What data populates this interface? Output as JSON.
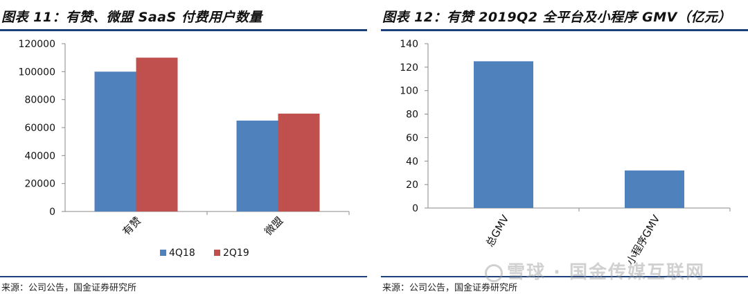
{
  "charts": [
    {
      "title": "图表 11：有赞、微盟 SaaS 付费用户数量",
      "source": "来源：公司公告，国金证券研究所"
    },
    {
      "title": "图表 12：有赞 2019Q2 全平台及小程序 GMV（亿元）",
      "source": "来源：公司公告，国金证券研究所"
    }
  ],
  "chart_data": [
    {
      "type": "bar",
      "categories": [
        "有赞",
        "微盟"
      ],
      "series": [
        {
          "name": "4Q18",
          "values": [
            100000,
            65000
          ],
          "color": "#4f81bd"
        },
        {
          "name": "2Q19",
          "values": [
            110000,
            70000
          ],
          "color": "#c0504d"
        }
      ],
      "yticks": [
        "0",
        "20000",
        "40000",
        "60000",
        "80000",
        "100000",
        "120000"
      ],
      "ylim": [
        0,
        120000
      ],
      "legend": "bottom-center",
      "grid": false
    },
    {
      "type": "bar",
      "categories": [
        "总GMV",
        "小程序GMV"
      ],
      "series": [
        {
          "values": [
            125,
            32
          ],
          "color": "#4f81bd"
        }
      ],
      "yticks": [
        "0",
        "20",
        "40",
        "60",
        "80",
        "100",
        "120",
        "140"
      ],
      "ylim": [
        0,
        140
      ],
      "legend": "none",
      "grid": false
    }
  ],
  "watermark": "雪球 · 国金传媒互联网"
}
